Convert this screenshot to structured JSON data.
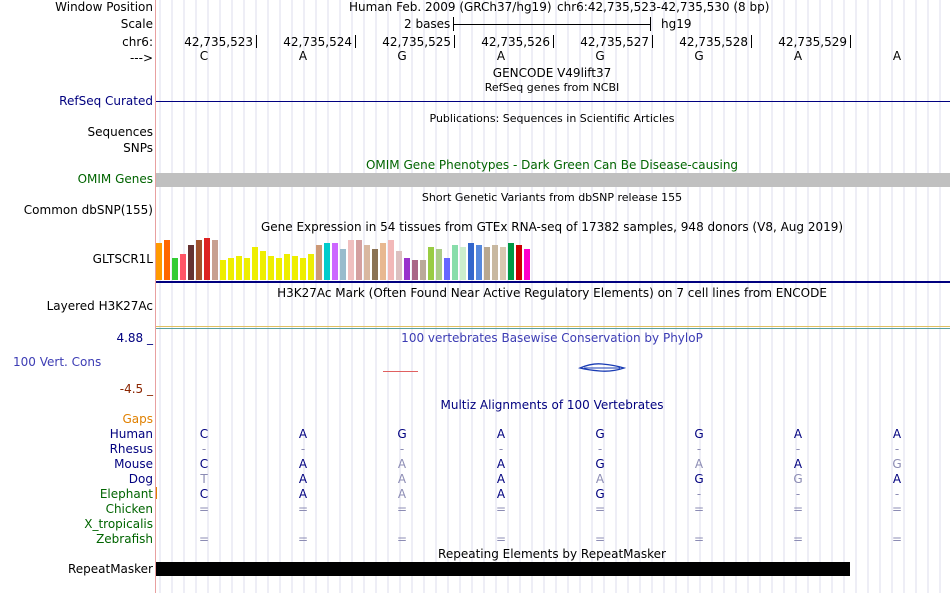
{
  "ruler": {
    "window_position_label": "Window Position",
    "scale_label": "Scale",
    "chrom_label": "chr6:",
    "arrow_label": "--->",
    "assembly_text": "Human Feb. 2009 (GRCh37/hg19)",
    "position_text": "chr6:42,735,523-42,735,530 (8 bp)",
    "scale_text": "2 bases",
    "db_text": "hg19",
    "positions": [
      "42,735,523",
      "42,735,524",
      "42,735,525",
      "42,735,526",
      "42,735,527",
      "42,735,528",
      "42,735,529"
    ],
    "bases": [
      "C",
      "A",
      "G",
      "A",
      "G",
      "G",
      "A",
      "A"
    ]
  },
  "tracks": {
    "gencode": {
      "title": "GENCODE V49lift37"
    },
    "refseq": {
      "label": "RefSeq Curated",
      "subtitle": "RefSeq genes from NCBI"
    },
    "publications": {
      "subtitle": "Publications: Sequences in Scientific Articles",
      "label_1": "Sequences",
      "label_2": "SNPs"
    },
    "omim": {
      "title": "OMIM Gene Phenotypes - Dark Green Can Be Disease-causing",
      "label": "OMIM Genes"
    },
    "dbsnp": {
      "title": "Short Genetic Variants from dbSNP release 155",
      "label": "Common dbSNP(155)"
    },
    "gtex": {
      "title": "Gene Expression in 54 tissues from GTEx RNA-seq of 17382 samples, 948 donors (V8, Aug 2019)",
      "gene_label": "GLTSCR1L",
      "bars": [
        {
          "color": "#ff9900",
          "level": 0.85
        },
        {
          "color": "#ff6600",
          "level": 0.9
        },
        {
          "color": "#33cc33",
          "level": 0.5
        },
        {
          "color": "#ff5566",
          "level": 0.6
        },
        {
          "color": "#663333",
          "level": 0.8
        },
        {
          "color": "#a0522d",
          "level": 0.9
        },
        {
          "color": "#dd2222",
          "level": 0.95
        },
        {
          "color": "#c8a090",
          "level": 0.9
        },
        {
          "color": "#eeee00",
          "level": 0.45
        },
        {
          "color": "#eeee00",
          "level": 0.5
        },
        {
          "color": "#eeee00",
          "level": 0.55
        },
        {
          "color": "#eeee00",
          "level": 0.5
        },
        {
          "color": "#eeee00",
          "level": 0.75
        },
        {
          "color": "#eeee00",
          "level": 0.65
        },
        {
          "color": "#eeee00",
          "level": 0.55
        },
        {
          "color": "#eeee00",
          "level": 0.5
        },
        {
          "color": "#eeee00",
          "level": 0.6
        },
        {
          "color": "#eeee00",
          "level": 0.55
        },
        {
          "color": "#eeee00",
          "level": 0.5
        },
        {
          "color": "#eeee00",
          "level": 0.6
        },
        {
          "color": "#cc9977",
          "level": 0.8
        },
        {
          "color": "#00cccc",
          "level": 0.85
        },
        {
          "color": "#cc66ff",
          "level": 0.85
        },
        {
          "color": "#99bbcc",
          "level": 0.7
        },
        {
          "color": "#f0c0c0",
          "level": 0.9
        },
        {
          "color": "#d4a0a0",
          "level": 0.9
        },
        {
          "color": "#d9b8a0",
          "level": 0.8
        },
        {
          "color": "#8b7355",
          "level": 0.7
        },
        {
          "color": "#e8b890",
          "level": 0.85
        },
        {
          "color": "#f2b8b8",
          "level": 0.9
        },
        {
          "color": "#dcc0c0",
          "level": 0.65
        },
        {
          "color": "#9933cc",
          "level": 0.5
        },
        {
          "color": "#aa6688",
          "level": 0.45
        },
        {
          "color": "#bbaa99",
          "level": 0.45
        },
        {
          "color": "#99cc44",
          "level": 0.75
        },
        {
          "color": "#aacc88",
          "level": 0.7
        },
        {
          "color": "#6666ff",
          "level": 0.5
        },
        {
          "color": "#88ddaa",
          "level": 0.8
        },
        {
          "color": "#cceecc",
          "level": 0.75
        },
        {
          "color": "#3366cc",
          "level": 0.85
        },
        {
          "color": "#5588dd",
          "level": 0.8
        },
        {
          "color": "#b8a890",
          "level": 0.75
        },
        {
          "color": "#c8b8a0",
          "level": 0.8
        },
        {
          "color": "#d8c8b0",
          "level": 0.75
        },
        {
          "color": "#009944",
          "level": 0.85
        },
        {
          "color": "#cc0000",
          "level": 0.8
        },
        {
          "color": "#ff00cc",
          "level": 0.7
        }
      ]
    },
    "h3k27ac": {
      "title": "H3K27Ac Mark (Often Found Near Active Regulatory Elements) on 7 cell lines from ENCODE",
      "label": "Layered H3K27Ac"
    },
    "phylop": {
      "title": "100 vertebrates Basewise Conservation by PhyloP",
      "label": "100 Vert. Cons",
      "max_label": "4.88 _",
      "min_label": "-4.5 _"
    },
    "multiz": {
      "title": "Multiz Alignments of 100 Vertebrates",
      "gaps_label": "Gaps",
      "species": [
        {
          "name": "Human",
          "bases": [
            "C",
            "A",
            "G",
            "A",
            "G",
            "G",
            "A",
            "A"
          ]
        },
        {
          "name": "Rhesus",
          "bases": [
            "-",
            "-",
            "-",
            "-",
            "-",
            "-",
            "-",
            "-"
          ]
        },
        {
          "name": "Mouse",
          "bases": [
            "C",
            "A",
            "A",
            "A",
            "G",
            "A",
            "A",
            "G"
          ]
        },
        {
          "name": "Dog",
          "bases": [
            "T",
            "A",
            "A",
            "A",
            "A",
            "G",
            "G",
            "A"
          ]
        },
        {
          "name": "Elephant",
          "bases": [
            "C",
            "A",
            "A",
            "A",
            "G",
            "-",
            "-",
            "-"
          ]
        },
        {
          "name": "Chicken",
          "bases": [
            "=",
            "=",
            "=",
            "=",
            "=",
            "=",
            "=",
            "="
          ]
        },
        {
          "name": "X_tropicalis",
          "bases": [
            "",
            "",
            "",
            "",
            "",
            "",
            "",
            ""
          ]
        },
        {
          "name": "Zebrafish",
          "bases": [
            "=",
            "=",
            "=",
            "=",
            "=",
            "=",
            "=",
            "="
          ]
        }
      ]
    },
    "repeatmasker": {
      "title": "Repeating Elements by RepeatMasker",
      "label": "RepeatMasker"
    }
  },
  "colors": {
    "navy": "#00007f",
    "dark_green": "#006400",
    "omim_gray": "#c0c0c0",
    "gaps_orange": "#e08000",
    "phylop_min": "#8b2500"
  }
}
